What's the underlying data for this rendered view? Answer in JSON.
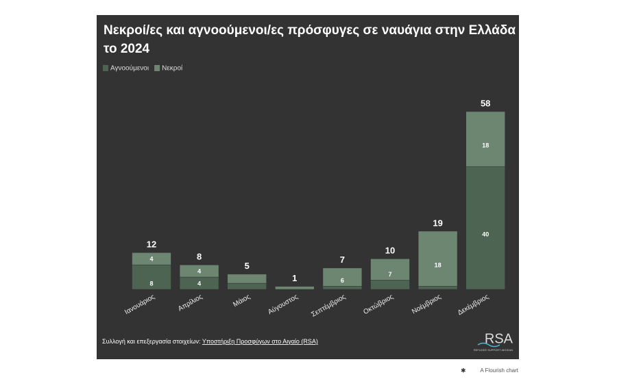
{
  "chart_data": {
    "type": "stacked-bar",
    "title": "Νεκροί/ες και αγνοούμενοι/ες πρόσφυγες σε ναυάγια στην Ελλάδα",
    "title_line2": "το 2024",
    "categories": [
      "Ιανουάριος",
      "Απρίλιος",
      "Μάιος",
      "Αύγουστος",
      "Σεπτέμβριος",
      "Οκτώβριος",
      "Νοέμβριος",
      "Δεκέμβριος"
    ],
    "series": [
      {
        "name": "Αγνοούμενοι",
        "color": "#4e6452",
        "values": [
          8,
          4,
          2,
          0,
          1,
          3,
          1,
          40
        ],
        "value_labels": [
          "8",
          "4",
          null,
          null,
          null,
          null,
          null,
          "40"
        ]
      },
      {
        "name": "Νεκροί",
        "color": "#6c8672",
        "values": [
          4,
          4,
          3,
          1,
          6,
          7,
          18,
          18
        ],
        "value_labels": [
          "4",
          "4",
          null,
          null,
          "6",
          "7",
          "18",
          "18"
        ]
      }
    ],
    "totals": [
      12,
      8,
      5,
      1,
      7,
      10,
      19,
      58
    ],
    "source_prefix": "Συλλογή και επεξεργασία στοιχείων:",
    "source_link": "Υποστήριξη Προσφύγων στο Αιγαίο (RSA)",
    "logo": "RSA",
    "logo_subtitle": "REFUGEE SUPPORT AEGEAN",
    "credit": "A Flourish chart"
  }
}
